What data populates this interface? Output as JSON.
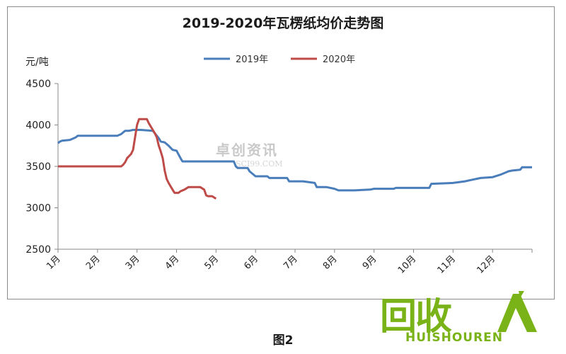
{
  "caption": "图2",
  "watermark": {
    "main": "卓创资讯",
    "sub": "SCI99.COM"
  },
  "logo": {
    "cn": "回收",
    "en": "HUISHOUREN"
  },
  "colors": {
    "series_2019": "#4a7ebb",
    "series_2020": "#be4b48",
    "logo": "#7ab317"
  },
  "chart_data": {
    "type": "line",
    "title": "2019-2020年瓦楞纸均价走势图",
    "ylabel": "元/吨",
    "ylim": [
      2500,
      4500
    ],
    "yticks": [
      2500,
      3000,
      3500,
      4000,
      4500
    ],
    "x_unit": "month",
    "xlim": [
      1,
      13
    ],
    "xticks": [
      "1月",
      "2月",
      "3月",
      "4月",
      "5月",
      "6月",
      "7月",
      "8月",
      "9月",
      "10月",
      "11月",
      "12月"
    ],
    "legend_position": "top",
    "grid": false,
    "series": [
      {
        "name": "2019年",
        "color": "#4a7ebb",
        "x": [
          1.0,
          1.05,
          1.1,
          1.3,
          1.4,
          1.45,
          1.5,
          2.0,
          2.5,
          2.6,
          2.65,
          2.7,
          2.8,
          2.9,
          3.0,
          3.1,
          3.4,
          3.45,
          3.5,
          3.55,
          3.6,
          3.7,
          3.75,
          3.8,
          3.9,
          4.0,
          4.1,
          4.15,
          5.0,
          5.45,
          5.5,
          5.55,
          5.8,
          5.85,
          6.0,
          6.3,
          6.35,
          6.8,
          6.85,
          7.2,
          7.5,
          7.55,
          7.8,
          8.0,
          8.1,
          8.5,
          8.9,
          9.0,
          9.5,
          9.55,
          10.4,
          10.45,
          11.0,
          11.3,
          11.5,
          11.7,
          12.0,
          12.2,
          12.35,
          12.4,
          12.5,
          12.7,
          12.75,
          13.0
        ],
        "y": [
          3780,
          3800,
          3810,
          3820,
          3840,
          3850,
          3870,
          3870,
          3870,
          3890,
          3910,
          3930,
          3930,
          3940,
          3940,
          3940,
          3930,
          3900,
          3870,
          3840,
          3800,
          3790,
          3770,
          3750,
          3700,
          3690,
          3600,
          3560,
          3560,
          3560,
          3500,
          3480,
          3480,
          3440,
          3380,
          3380,
          3360,
          3360,
          3320,
          3320,
          3300,
          3250,
          3250,
          3230,
          3210,
          3210,
          3220,
          3230,
          3230,
          3240,
          3240,
          3290,
          3300,
          3320,
          3340,
          3360,
          3370,
          3400,
          3430,
          3440,
          3450,
          3460,
          3490,
          3490
        ]
      },
      {
        "name": "2020年",
        "color": "#be4b48",
        "x": [
          1.0,
          2.0,
          2.6,
          2.65,
          2.7,
          2.75,
          2.85,
          2.9,
          2.95,
          3.0,
          3.05,
          3.1,
          3.2,
          3.25,
          3.3,
          3.4,
          3.45,
          3.5,
          3.55,
          3.6,
          3.65,
          3.7,
          3.75,
          3.8,
          3.85,
          3.9,
          3.95,
          4.0,
          4.05,
          4.1,
          4.2,
          4.3,
          4.4,
          4.5,
          4.6,
          4.7,
          4.75,
          4.8,
          4.9,
          5.0
        ],
        "y": [
          3500,
          3500,
          3500,
          3520,
          3550,
          3600,
          3650,
          3700,
          3850,
          4000,
          4070,
          4070,
          4070,
          4070,
          4020,
          3940,
          3900,
          3850,
          3750,
          3680,
          3600,
          3450,
          3350,
          3300,
          3260,
          3220,
          3180,
          3180,
          3180,
          3200,
          3220,
          3250,
          3250,
          3250,
          3250,
          3220,
          3150,
          3140,
          3140,
          3110
        ]
      }
    ]
  }
}
